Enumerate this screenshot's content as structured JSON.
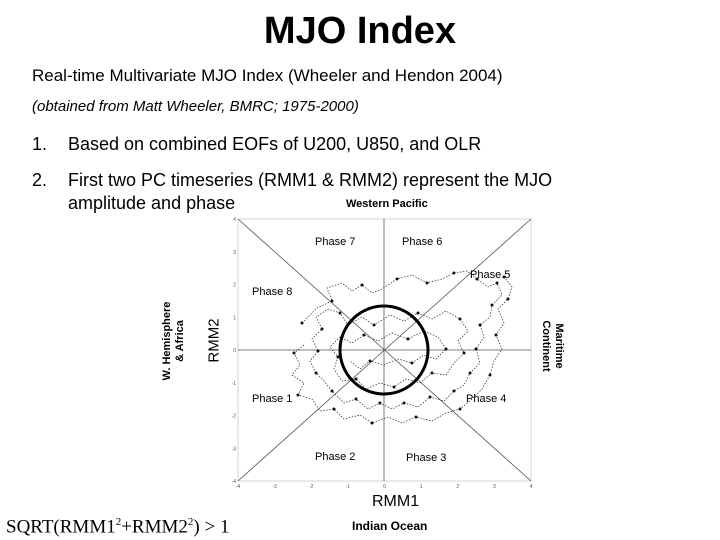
{
  "slide": {
    "title": "MJO Index",
    "subtitle": "Real-time Multivariate MJO Index (Wheeler and Hendon 2004)",
    "source": "(obtained from Matt Wheeler, BMRC; 1975-2000)",
    "bullets": [
      {
        "num": "1.",
        "text": "Based on combined EOFs of U200, U850, and OLR"
      },
      {
        "num": "2.",
        "text": "First two PC timeseries (RMM1 & RMM2) represent the MJO",
        "cont": "amplitude and phase"
      }
    ]
  },
  "diagram": {
    "regions": {
      "top": "Western Pacific",
      "bottom": "Indian Ocean",
      "left_line1": "W. Hemisphere",
      "left_line2": "& Africa",
      "right_line1": "Maritime",
      "right_line2": "Continent"
    },
    "phases": {
      "p1": "Phase 1",
      "p2": "Phase 2",
      "p3": "Phase 3",
      "p4": "Phase 4",
      "p5": "Phase 5",
      "p6": "Phase 6",
      "p7": "Phase 7",
      "p8": "Phase 8"
    },
    "axes": {
      "x_label": "RMM1",
      "y_label": "RMM2",
      "x_ticks": [
        "-4",
        "-3",
        "-2",
        "-1",
        "0",
        "1",
        "2",
        "3",
        "4"
      ],
      "y_ticks": [
        "-4",
        "-3",
        "-2",
        "-1",
        "0",
        "1",
        "2",
        "3",
        "4"
      ]
    },
    "formula": {
      "prefix": "SQRT(RMM1",
      "sup1": "2",
      "mid": "+RMM2",
      "sup2": "2",
      "suffix": ") > 1"
    }
  }
}
